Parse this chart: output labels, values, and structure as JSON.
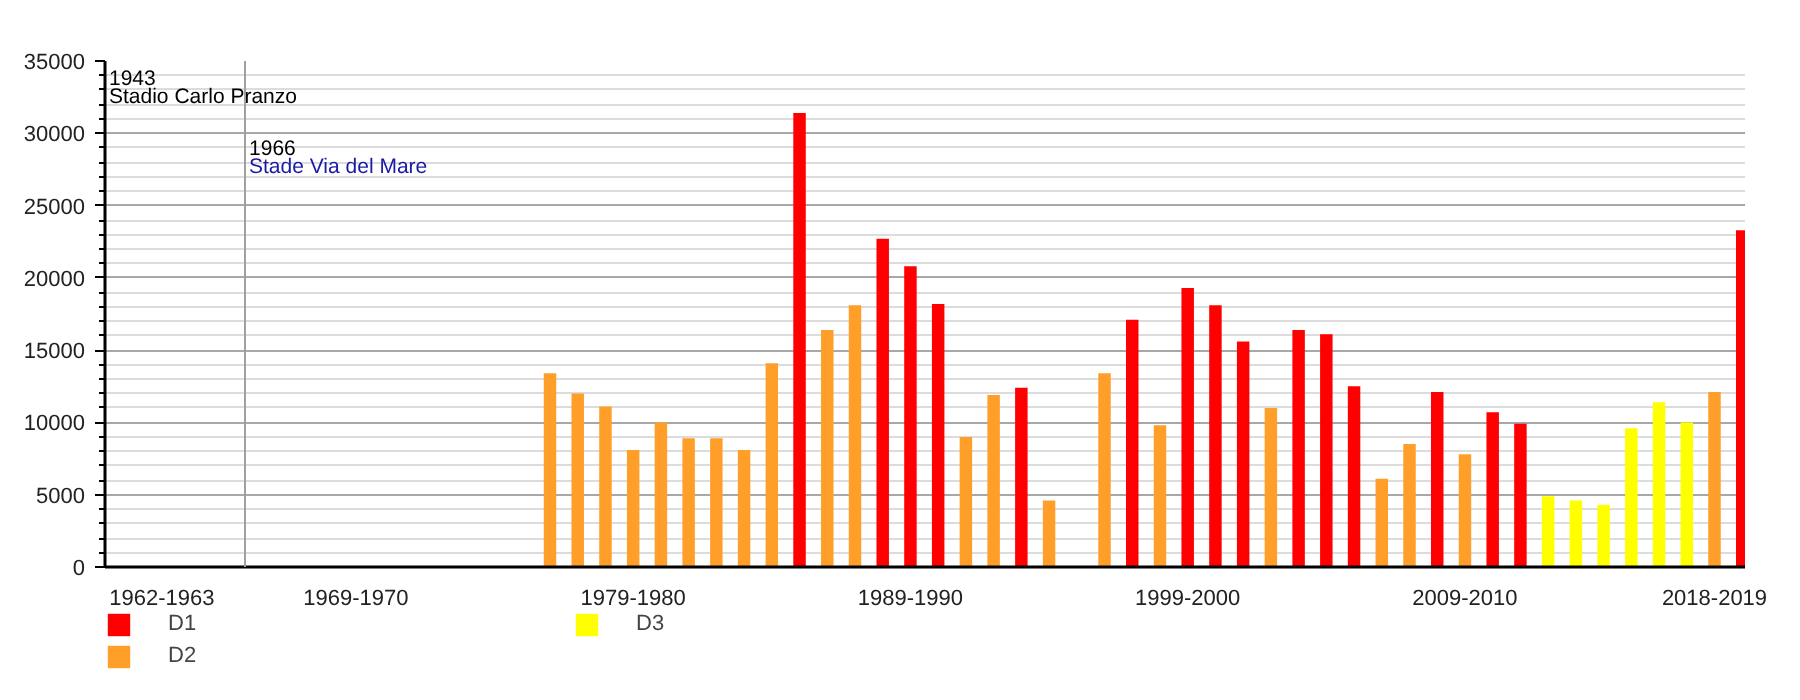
{
  "chart_data": {
    "type": "bar",
    "categories": [
      "1962-1963",
      null,
      null,
      null,
      null,
      null,
      null,
      "1969-1970",
      null,
      null,
      null,
      null,
      null,
      null,
      null,
      null,
      null,
      "1979-1980",
      null,
      null,
      null,
      null,
      null,
      null,
      null,
      null,
      null,
      "1989-1990",
      null,
      null,
      null,
      null,
      null,
      null,
      null,
      null,
      null,
      "1999-2000",
      null,
      null,
      null,
      null,
      null,
      null,
      null,
      null,
      null,
      "2009-2010",
      null,
      null,
      null,
      null,
      null,
      null,
      null,
      null,
      "2018-2019",
      null
    ],
    "series": [
      {
        "name": "D1",
        "color": "#ff0000",
        "values": [
          null,
          null,
          null,
          null,
          null,
          null,
          null,
          null,
          null,
          null,
          null,
          null,
          null,
          null,
          null,
          null,
          null,
          null,
          null,
          null,
          null,
          null,
          null,
          31400,
          null,
          null,
          22700,
          20800,
          18200,
          null,
          null,
          12400,
          null,
          null,
          null,
          17100,
          null,
          19300,
          18100,
          15600,
          null,
          16400,
          16100,
          12500,
          null,
          null,
          12100,
          null,
          10700,
          9900,
          null,
          null,
          null,
          null,
          null,
          null,
          null,
          23300
        ]
      },
      {
        "name": "D2",
        "color": "#ff9f2a",
        "values": [
          null,
          null,
          null,
          null,
          null,
          null,
          null,
          null,
          null,
          null,
          null,
          null,
          null,
          null,
          13400,
          12000,
          11100,
          8100,
          10000,
          8900,
          8900,
          8100,
          14100,
          null,
          16400,
          18100,
          null,
          null,
          null,
          9000,
          11900,
          null,
          4600,
          null,
          13400,
          null,
          9800,
          null,
          null,
          null,
          11000,
          null,
          null,
          null,
          6100,
          8500,
          null,
          7800,
          null,
          null,
          null,
          null,
          null,
          null,
          null,
          null,
          12100,
          null
        ]
      },
      {
        "name": "D3",
        "color": "#ffff00",
        "values": [
          null,
          null,
          null,
          null,
          null,
          null,
          null,
          null,
          null,
          null,
          null,
          null,
          null,
          null,
          null,
          null,
          null,
          null,
          null,
          null,
          null,
          null,
          null,
          null,
          null,
          null,
          null,
          null,
          null,
          null,
          null,
          null,
          null,
          null,
          null,
          null,
          null,
          null,
          null,
          null,
          null,
          null,
          null,
          null,
          null,
          null,
          null,
          null,
          null,
          null,
          4900,
          4600,
          4300,
          9600,
          11400,
          10000,
          null,
          null
        ]
      }
    ],
    "ylim": [
      0,
      35000
    ],
    "yticks": [
      0,
      5000,
      10000,
      15000,
      20000,
      25000,
      30000,
      35000
    ],
    "annotations": [
      "1943\nStadio Carlo Pranzo",
      "1966\nStade Via del Mare"
    ],
    "grid": "y",
    "legend": "bottom"
  }
}
